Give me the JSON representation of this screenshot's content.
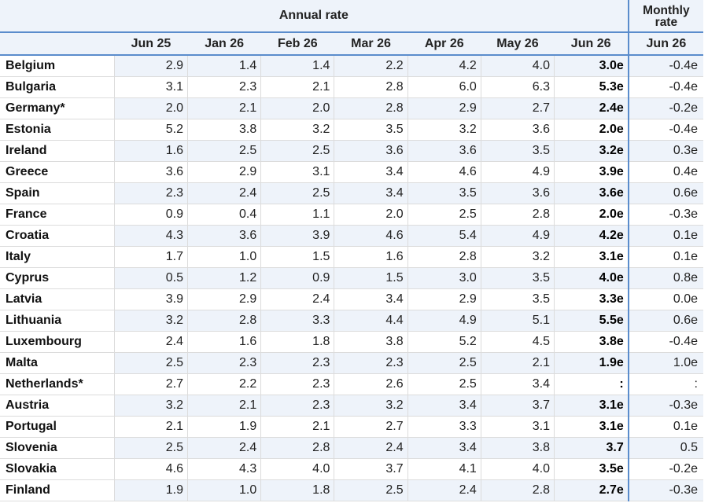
{
  "header": {
    "annual_label": "Annual rate",
    "monthly_label_line1": "Monthly",
    "monthly_label_line2": "rate",
    "periods": [
      "Jun 25",
      "Jan 26",
      "Feb 26",
      "Mar 26",
      "Apr 26",
      "May 26",
      "Jun 26"
    ],
    "monthly_period": "Jun 26"
  },
  "rows": [
    {
      "country": "Belgium",
      "values": [
        "2.9",
        "1.4",
        "1.4",
        "2.2",
        "4.2",
        "4.0"
      ],
      "jun26": "3.0e",
      "monthly": "-0.4e"
    },
    {
      "country": "Bulgaria",
      "values": [
        "3.1",
        "2.3",
        "2.1",
        "2.8",
        "6.0",
        "6.3"
      ],
      "jun26": "5.3e",
      "monthly": "-0.4e"
    },
    {
      "country": "Germany*",
      "values": [
        "2.0",
        "2.1",
        "2.0",
        "2.8",
        "2.9",
        "2.7"
      ],
      "jun26": "2.4e",
      "monthly": "-0.2e"
    },
    {
      "country": "Estonia",
      "values": [
        "5.2",
        "3.8",
        "3.2",
        "3.5",
        "3.2",
        "3.6"
      ],
      "jun26": "2.0e",
      "monthly": "-0.4e"
    },
    {
      "country": "Ireland",
      "values": [
        "1.6",
        "2.5",
        "2.5",
        "3.6",
        "3.6",
        "3.5"
      ],
      "jun26": "3.2e",
      "monthly": "0.3e"
    },
    {
      "country": "Greece",
      "values": [
        "3.6",
        "2.9",
        "3.1",
        "3.4",
        "4.6",
        "4.9"
      ],
      "jun26": "3.9e",
      "monthly": "0.4e"
    },
    {
      "country": "Spain",
      "values": [
        "2.3",
        "2.4",
        "2.5",
        "3.4",
        "3.5",
        "3.6"
      ],
      "jun26": "3.6e",
      "monthly": "0.6e"
    },
    {
      "country": "France",
      "values": [
        "0.9",
        "0.4",
        "1.1",
        "2.0",
        "2.5",
        "2.8"
      ],
      "jun26": "2.0e",
      "monthly": "-0.3e"
    },
    {
      "country": "Croatia",
      "values": [
        "4.3",
        "3.6",
        "3.9",
        "4.6",
        "5.4",
        "4.9"
      ],
      "jun26": "4.2e",
      "monthly": "0.1e"
    },
    {
      "country": "Italy",
      "values": [
        "1.7",
        "1.0",
        "1.5",
        "1.6",
        "2.8",
        "3.2"
      ],
      "jun26": "3.1e",
      "monthly": "0.1e"
    },
    {
      "country": "Cyprus",
      "values": [
        "0.5",
        "1.2",
        "0.9",
        "1.5",
        "3.0",
        "3.5"
      ],
      "jun26": "4.0e",
      "monthly": "0.8e"
    },
    {
      "country": "Latvia",
      "values": [
        "3.9",
        "2.9",
        "2.4",
        "3.4",
        "2.9",
        "3.5"
      ],
      "jun26": "3.3e",
      "monthly": "0.0e"
    },
    {
      "country": "Lithuania",
      "values": [
        "3.2",
        "2.8",
        "3.3",
        "4.4",
        "4.9",
        "5.1"
      ],
      "jun26": "5.5e",
      "monthly": "0.6e"
    },
    {
      "country": "Luxembourg",
      "values": [
        "2.4",
        "1.6",
        "1.8",
        "3.8",
        "5.2",
        "4.5"
      ],
      "jun26": "3.8e",
      "monthly": "-0.4e"
    },
    {
      "country": "Malta",
      "values": [
        "2.5",
        "2.3",
        "2.3",
        "2.3",
        "2.5",
        "2.1"
      ],
      "jun26": "1.9e",
      "monthly": "1.0e"
    },
    {
      "country": "Netherlands*",
      "values": [
        "2.7",
        "2.2",
        "2.3",
        "2.6",
        "2.5",
        "3.4"
      ],
      "jun26": ":",
      "monthly": ":"
    },
    {
      "country": "Austria",
      "values": [
        "3.2",
        "2.1",
        "2.3",
        "3.2",
        "3.4",
        "3.7"
      ],
      "jun26": "3.1e",
      "monthly": "-0.3e"
    },
    {
      "country": "Portugal",
      "values": [
        "2.1",
        "1.9",
        "2.1",
        "2.7",
        "3.3",
        "3.1"
      ],
      "jun26": "3.1e",
      "monthly": "0.1e"
    },
    {
      "country": "Slovenia",
      "values": [
        "2.5",
        "2.4",
        "2.8",
        "2.4",
        "3.4",
        "3.8"
      ],
      "jun26": "3.7",
      "monthly": "0.5"
    },
    {
      "country": "Slovakia",
      "values": [
        "4.6",
        "4.3",
        "4.0",
        "3.7",
        "4.1",
        "4.0"
      ],
      "jun26": "3.5e",
      "monthly": "-0.2e"
    },
    {
      "country": "Finland",
      "values": [
        "1.9",
        "1.0",
        "1.8",
        "2.5",
        "2.4",
        "2.8"
      ],
      "jun26": "2.7e",
      "monthly": "-0.3e"
    }
  ]
}
